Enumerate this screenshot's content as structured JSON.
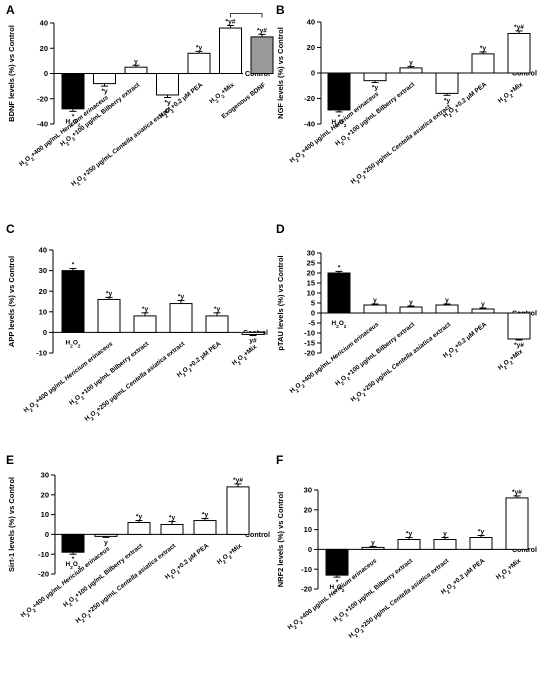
{
  "figure": {
    "control_label": "Control",
    "colors": {
      "h2o2": "#000000",
      "exogenous": "#999999",
      "default": "#ffffff",
      "stroke": "#000000"
    }
  },
  "chart_data": [
    {
      "panel": "A",
      "type": "bar",
      "ylabel": "BDNF levels (%) vs Control",
      "ylim": [
        -40,
        40
      ],
      "yticks": [
        -40,
        -20,
        0,
        20,
        40
      ],
      "categories": [
        "H2O2",
        "H2O2+400 μg/mL Hericium erinaceus",
        "H2O2+100 μg/mL Bilberry extract",
        "H2O2+250 μg/mL Centella asiatica extract",
        "H2O2+0.2 μM PEA",
        "H2O2+Mix",
        "Exogenous BDNF"
      ],
      "values": [
        -28,
        -8,
        5,
        -17,
        16,
        36,
        29
      ],
      "errors": [
        2,
        2,
        1.5,
        2,
        1.5,
        2,
        2
      ],
      "annotations": [
        "*",
        "*y",
        "y",
        "*y",
        "*y",
        "*y#",
        "*y#"
      ],
      "fills": [
        "h2o2",
        "default",
        "default",
        "default",
        "default",
        "default",
        "exogenous"
      ],
      "bracket": [
        5,
        6
      ]
    },
    {
      "panel": "B",
      "type": "bar",
      "ylabel": "NGF levels (%) vs Control",
      "ylim": [
        -40,
        40
      ],
      "yticks": [
        -40,
        -20,
        0,
        20,
        40
      ],
      "categories": [
        "H2O2",
        "H2O2+400 μg/mL Hericium erinaceus",
        "H2O2+100 μg/mL Bilberry extract",
        "H2O2+250 μg/mL Centella asiatica extract",
        "H2O2+0.2 μM PEA",
        "H2O2+Mix"
      ],
      "values": [
        -29,
        -6,
        4,
        -16,
        15,
        31
      ],
      "errors": [
        1.5,
        1.5,
        1,
        1.5,
        1.5,
        2
      ],
      "annotations": [
        "*",
        "*y",
        "y",
        "*y",
        "*y",
        "*y#"
      ],
      "fills": [
        "h2o2",
        "default",
        "default",
        "default",
        "default",
        "default"
      ]
    },
    {
      "panel": "C",
      "type": "bar",
      "ylabel": "APP levels (%) vs Control",
      "ylim": [
        -10,
        40
      ],
      "yticks": [
        -10,
        0,
        10,
        20,
        30,
        40
      ],
      "categories": [
        "H2O2",
        "H2O2+400 μg/mL Hericium erinaceus",
        "H2O2+100 μg/mL Bilberry extract",
        "H2O2+250 μg/mL Centella asiatica extract",
        "H2O2+0.2 μM PEA",
        "H2O2+Mix"
      ],
      "values": [
        30,
        16,
        8,
        14,
        8,
        -1
      ],
      "errors": [
        1,
        1,
        1.5,
        1.5,
        1.5,
        0.5
      ],
      "annotations": [
        "*",
        "*y",
        "*y",
        "*y",
        "*y",
        "y#"
      ],
      "fills": [
        "h2o2",
        "default",
        "default",
        "default",
        "default",
        "default"
      ]
    },
    {
      "panel": "D",
      "type": "bar",
      "ylabel": "pTAU levels (%) vs Control",
      "ylim": [
        -20,
        30
      ],
      "yticks": [
        -20,
        -15,
        -10,
        -5,
        0,
        5,
        10,
        15,
        20,
        25,
        30
      ],
      "categories": [
        "H2O2",
        "H2O2+400 μg/mL Hericium erinaceus",
        "H2O2+100 μg/mL Bilberry extract",
        "H2O2+250 μg/mL Centella asiatica extract",
        "H2O2+0.2 μM PEA",
        "H2O2+Mix"
      ],
      "values": [
        20,
        4,
        3,
        4,
        2,
        -13
      ],
      "errors": [
        0.8,
        0.5,
        0.5,
        0.5,
        0.5,
        0.5
      ],
      "annotations": [
        "*",
        "y",
        "y",
        "y",
        "y",
        "*y#"
      ],
      "fills": [
        "h2o2",
        "default",
        "default",
        "default",
        "default",
        "default"
      ]
    },
    {
      "panel": "E",
      "type": "bar",
      "ylabel": "Sirt-1 levels (%) vs Control",
      "ylim": [
        -20,
        30
      ],
      "yticks": [
        -20,
        -10,
        0,
        10,
        20,
        30
      ],
      "categories": [
        "H2O2",
        "H2O2+400 μg/mL Hericium erinaceus",
        "H2O2+100 μg/mL Bilberry extract",
        "H2O2+250 μg/mL Centella asiatica extract",
        "H2O2+0.2 μM PEA",
        "H2O2+Mix"
      ],
      "values": [
        -9,
        -1,
        6,
        5,
        7,
        24
      ],
      "errors": [
        1,
        0.5,
        1,
        1.5,
        1,
        1.5
      ],
      "annotations": [
        "*",
        "y",
        "*y",
        "*y",
        "*y",
        "*y#"
      ],
      "fills": [
        "h2o2",
        "default",
        "default",
        "default",
        "default",
        "default"
      ]
    },
    {
      "panel": "F",
      "type": "bar",
      "ylabel": "NRF2 levels (%) vs Control",
      "ylim": [
        -20,
        30
      ],
      "yticks": [
        -20,
        -10,
        0,
        10,
        20,
        30
      ],
      "categories": [
        "H2O2",
        "H2O2+400 μg/mL Hericium erinaceus",
        "H2O2+100 μg/mL Bilberry extract",
        "H2O2+250 μg/mL Centella asiatica extract",
        "H2O2+0.2 μM PEA",
        "H2O2+Mix"
      ],
      "values": [
        -13,
        1,
        5,
        5,
        6,
        26
      ],
      "errors": [
        1,
        0.5,
        1,
        1,
        1,
        1
      ],
      "annotations": [
        "*",
        "y",
        "*y",
        "y",
        "*y",
        "*y#"
      ],
      "fills": [
        "h2o2",
        "default",
        "default",
        "default",
        "default",
        "default"
      ]
    }
  ]
}
